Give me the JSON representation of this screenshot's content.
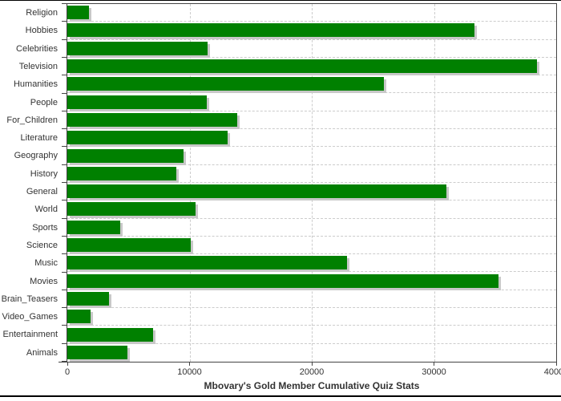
{
  "window": {
    "background": "#ffffff",
    "frame_border_color": "#000000"
  },
  "chart_data": {
    "type": "bar",
    "orientation": "horizontal",
    "title": "Mbovary's Gold Member Cumulative Quiz Stats",
    "categories": [
      "Religion",
      "Hobbies",
      "Celebrities",
      "Television",
      "Humanities",
      "People",
      "For_Children",
      "Literature",
      "Geography",
      "History",
      "General",
      "World",
      "Sports",
      "Science",
      "Music",
      "Movies",
      "Brain_Teasers",
      "Video_Games",
      "Entertainment",
      "Animals"
    ],
    "values": [
      1800,
      33300,
      11500,
      38400,
      25900,
      11400,
      13900,
      13100,
      9500,
      8900,
      31000,
      10500,
      4300,
      10100,
      22900,
      35300,
      3400,
      1900,
      7000,
      4900
    ],
    "xlabel": "",
    "ylabel": "",
    "xlim": [
      0,
      40000
    ],
    "x_ticks": [
      0,
      10000,
      20000,
      30000,
      40000
    ],
    "grid": "dashed",
    "legend": "none",
    "bar_color": "#008000",
    "bar_shadow_color": "#c8c8c8",
    "gridline_color": "#cccccc",
    "axis_color": "#444444",
    "text_color": "#333333"
  }
}
